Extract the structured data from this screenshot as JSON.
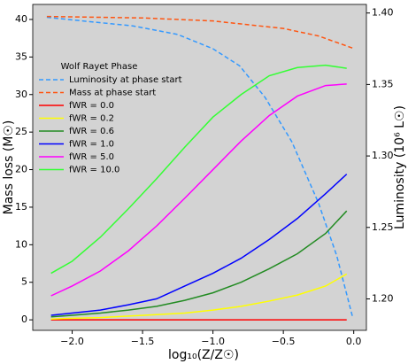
{
  "chart_data": {
    "type": "line",
    "xlabel": "log₁₀(Z/Z☉)",
    "ylabel": "Mass loss (M☉)",
    "y2label": "Luminosity (10⁶ L☉)",
    "legend_title": "Wolf Rayet Phase",
    "legend": "upper left",
    "xlim": [
      -2.28,
      0.09
    ],
    "ylim": [
      -1.4,
      42
    ],
    "y2lim": [
      1.178,
      1.406
    ],
    "xticks": [
      {
        "value": -2.0,
        "label": "−2.0"
      },
      {
        "value": -1.5,
        "label": "−1.5"
      },
      {
        "value": -1.0,
        "label": "−1.0"
      },
      {
        "value": -0.5,
        "label": "−0.5"
      },
      {
        "value": 0.0,
        "label": "0.0"
      }
    ],
    "yticks": [
      0,
      5,
      10,
      15,
      20,
      25,
      30,
      35,
      40
    ],
    "y2ticks": [
      {
        "value": 1.2,
        "label": "1.20"
      },
      {
        "value": 1.25,
        "label": "1.25"
      },
      {
        "value": 1.3,
        "label": "1.30"
      },
      {
        "value": 1.35,
        "label": "1.35"
      },
      {
        "value": 1.4,
        "label": "1.40"
      }
    ],
    "series": [
      {
        "name": "Luminosity at phase start",
        "color": "#3399ff",
        "linestyle": "dashed",
        "axis": "y2",
        "x": [
          -2.18,
          -1.88,
          -1.57,
          -1.25,
          -1.0,
          -0.81,
          -0.63,
          -0.44,
          -0.25,
          -0.12,
          -0.01
        ],
        "values": [
          1.397,
          1.394,
          1.391,
          1.385,
          1.375,
          1.363,
          1.341,
          1.31,
          1.267,
          1.23,
          1.188
        ]
      },
      {
        "name": "Mass at phase start",
        "color": "#ff5511",
        "linestyle": "dashed",
        "x": [
          -2.18,
          -1.5,
          -1.0,
          -0.5,
          -0.25,
          -0.01
        ],
        "values": [
          40.4,
          40.2,
          39.8,
          38.8,
          37.8,
          36.2
        ]
      },
      {
        "name": "fWR = 0.0",
        "color": "#ff0000",
        "linestyle": "solid",
        "x": [
          -2.15,
          -2.0,
          -1.8,
          -1.6,
          -1.4,
          -1.2,
          -1.0,
          -0.8,
          -0.6,
          -0.4,
          -0.2,
          -0.05
        ],
        "values": [
          0,
          0,
          0,
          0,
          0,
          0,
          0,
          0,
          0,
          0,
          0,
          0
        ]
      },
      {
        "name": "fWR = 0.2",
        "color": "#ffff00",
        "linestyle": "solid",
        "x": [
          -2.15,
          -2.0,
          -1.8,
          -1.6,
          -1.4,
          -1.2,
          -1.0,
          -0.8,
          -0.6,
          -0.4,
          -0.2,
          -0.05
        ],
        "values": [
          0.1,
          0.2,
          0.3,
          0.5,
          0.7,
          0.9,
          1.3,
          1.8,
          2.5,
          3.3,
          4.5,
          6.1
        ]
      },
      {
        "name": "fWR = 0.6",
        "color": "#228b22",
        "linestyle": "solid",
        "x": [
          -2.15,
          -2.0,
          -1.8,
          -1.6,
          -1.4,
          -1.2,
          -1.0,
          -0.8,
          -0.6,
          -0.4,
          -0.2,
          -0.05
        ],
        "values": [
          0.4,
          0.6,
          0.9,
          1.3,
          1.8,
          2.6,
          3.6,
          5.0,
          6.8,
          8.8,
          11.5,
          14.5
        ]
      },
      {
        "name": "fWR = 1.0",
        "color": "#0000ff",
        "linestyle": "solid",
        "x": [
          -2.15,
          -2.0,
          -1.8,
          -1.6,
          -1.4,
          -1.2,
          -1.0,
          -0.8,
          -0.6,
          -0.4,
          -0.2,
          -0.05
        ],
        "values": [
          0.6,
          0.9,
          1.3,
          2.0,
          2.8,
          4.5,
          6.2,
          8.2,
          10.7,
          13.5,
          16.8,
          19.4
        ]
      },
      {
        "name": "fWR = 5.0",
        "color": "#ff00ff",
        "linestyle": "solid",
        "x": [
          -2.15,
          -2.0,
          -1.8,
          -1.6,
          -1.4,
          -1.2,
          -1.0,
          -0.8,
          -0.6,
          -0.4,
          -0.2,
          -0.05
        ],
        "values": [
          3.2,
          4.5,
          6.5,
          9.2,
          12.5,
          16.2,
          20,
          23.8,
          27.2,
          29.8,
          31.2,
          31.4
        ]
      },
      {
        "name": "fWR = 10.0",
        "color": "#33ff33",
        "linestyle": "solid",
        "x": [
          -2.15,
          -2.0,
          -1.8,
          -1.6,
          -1.4,
          -1.2,
          -1.0,
          -0.8,
          -0.6,
          -0.4,
          -0.2,
          -0.05
        ],
        "values": [
          6.2,
          7.8,
          11,
          14.8,
          18.8,
          23,
          27,
          30,
          32.5,
          33.6,
          33.9,
          33.5
        ]
      }
    ]
  }
}
